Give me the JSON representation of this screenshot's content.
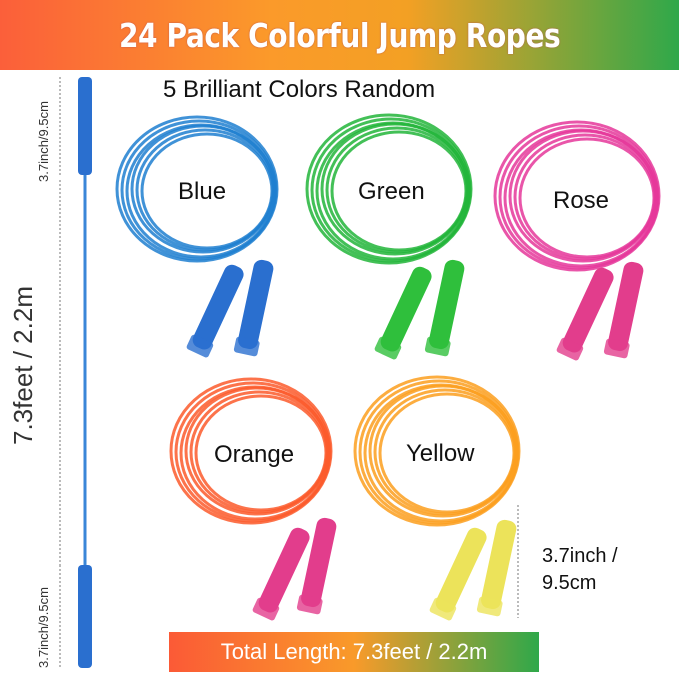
{
  "title": "24 Pack Colorful Jump Ropes",
  "subtitle": "5 Brilliant Colors Random",
  "ropes": [
    {
      "label": "Blue",
      "color": "#1e7fd0",
      "handle": "#2a6fcf"
    },
    {
      "label": "Green",
      "color": "#22b53a",
      "handle": "#2fbf3c"
    },
    {
      "label": "Rose",
      "color": "#e5379a",
      "handle": "#e23d8c"
    },
    {
      "label": "Orange",
      "color": "#fb5a2c",
      "handle": "#e23d8c"
    },
    {
      "label": "Yellow",
      "color": "#fb9f1f",
      "handle": "#ece35a"
    }
  ],
  "dimensions": {
    "handle_top": "3.7inch/9.5cm",
    "rope_length": "7.3feet / 2.2m",
    "handle_bottom": "3.7inch/9.5cm",
    "handle_right_line1": "3.7inch /",
    "handle_right_line2": "9.5cm"
  },
  "total_length": "Total Length: 7.3feet / 2.2m"
}
